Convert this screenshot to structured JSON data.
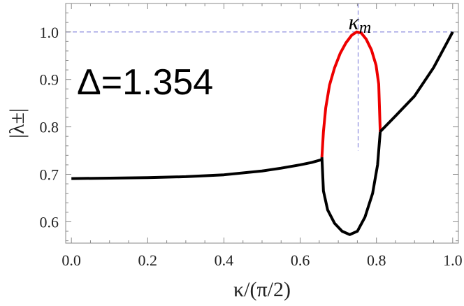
{
  "chart_data": {
    "type": "line",
    "xlabel": "κ/(π/2)",
    "ylabel": "|λ±|",
    "xlim": [
      -0.015,
      1.015
    ],
    "ylim": [
      0.555,
      1.06
    ],
    "x_ticks": [
      0.0,
      0.2,
      0.4,
      0.6,
      0.8,
      1.0
    ],
    "x_tick_labels": [
      "0.0",
      "0.2",
      "0.4",
      "0.6",
      "0.8",
      "1.0"
    ],
    "y_ticks": [
      0.6,
      0.7,
      0.8,
      0.9,
      1.0
    ],
    "y_tick_labels": [
      "0.6",
      "0.7",
      "0.8",
      "0.9",
      "1.0"
    ],
    "grid": false,
    "annotations": [
      {
        "text": "Δ=1.354"
      },
      {
        "text": "κm",
        "x": 0.752,
        "y": 1.0
      }
    ],
    "reference_lines": [
      {
        "orientation": "horizontal",
        "value": 1.0,
        "style": "dashed",
        "color": "#8888dd"
      },
      {
        "orientation": "vertical",
        "value": 0.752,
        "style": "dashed",
        "color": "#8888dd",
        "from": 0.75,
        "to": 1.06
      }
    ],
    "series": [
      {
        "color": "#000000",
        "x": [
          0.0,
          0.1,
          0.2,
          0.3,
          0.4,
          0.5,
          0.55,
          0.6,
          0.63,
          0.657
        ],
        "y": [
          0.691,
          0.692,
          0.693,
          0.695,
          0.699,
          0.707,
          0.713,
          0.72,
          0.725,
          0.731
        ]
      },
      {
        "color": "#000000",
        "x": [
          0.657,
          0.661,
          0.672,
          0.69,
          0.71,
          0.73,
          0.75,
          0.77,
          0.79,
          0.803,
          0.81
        ],
        "y": [
          0.736,
          0.665,
          0.625,
          0.597,
          0.58,
          0.573,
          0.58,
          0.61,
          0.66,
          0.72,
          0.79
        ]
      },
      {
        "color": "#ee0000",
        "x": [
          0.657,
          0.661,
          0.667,
          0.677,
          0.69,
          0.705,
          0.72,
          0.735,
          0.748,
          0.76,
          0.773,
          0.787,
          0.799,
          0.806,
          0.81
        ],
        "y": [
          0.736,
          0.79,
          0.84,
          0.888,
          0.924,
          0.955,
          0.977,
          0.993,
          1.0,
          0.998,
          0.985,
          0.962,
          0.93,
          0.89,
          0.79
        ]
      },
      {
        "color": "#000000",
        "x": [
          0.81,
          0.85,
          0.9,
          0.95,
          1.0
        ],
        "y": [
          0.79,
          0.823,
          0.865,
          0.925,
          1.0
        ]
      }
    ]
  }
}
